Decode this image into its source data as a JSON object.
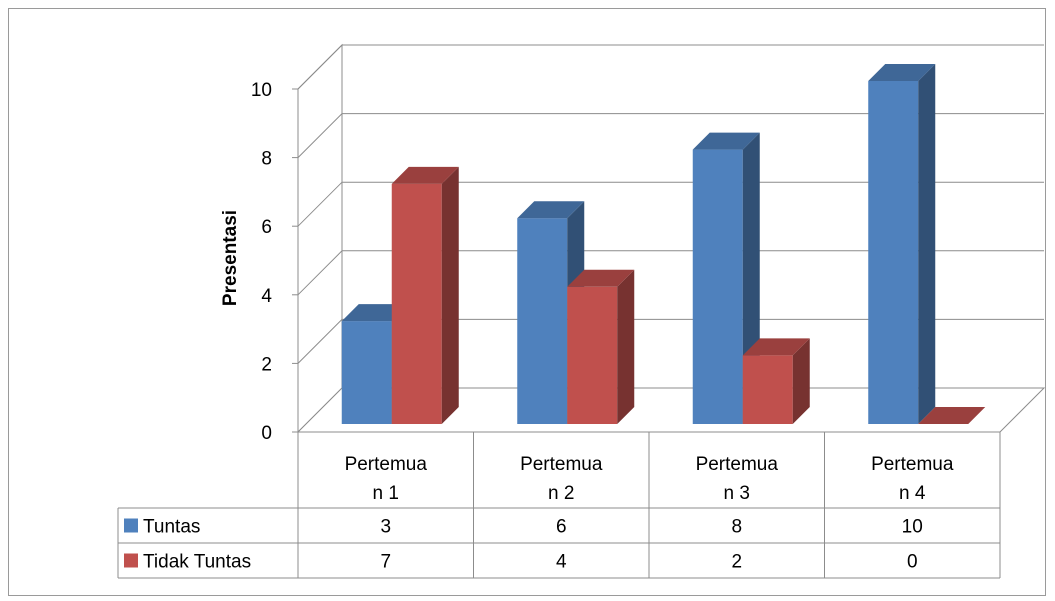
{
  "chart_data": {
    "type": "bar",
    "title": "",
    "ylabel": "Presentasi",
    "xlabel": "",
    "ylim": [
      0,
      10
    ],
    "yticks": [
      0,
      2,
      4,
      6,
      8,
      10
    ],
    "categories": [
      [
        "Pertemua",
        "n 1"
      ],
      [
        "Pertemua",
        "n 2"
      ],
      [
        "Pertemua",
        "n 3"
      ],
      [
        "Pertemua",
        "n 4"
      ]
    ],
    "series": [
      {
        "name": "Tuntas",
        "values": [
          3,
          6,
          8,
          10
        ],
        "color": "#4f81bd"
      },
      {
        "name": "Tidak Tuntas",
        "values": [
          7,
          4,
          2,
          0
        ],
        "color": "#c0504d"
      }
    ],
    "grid": true,
    "style": "3d-clustered-column",
    "legend": "data-table"
  }
}
